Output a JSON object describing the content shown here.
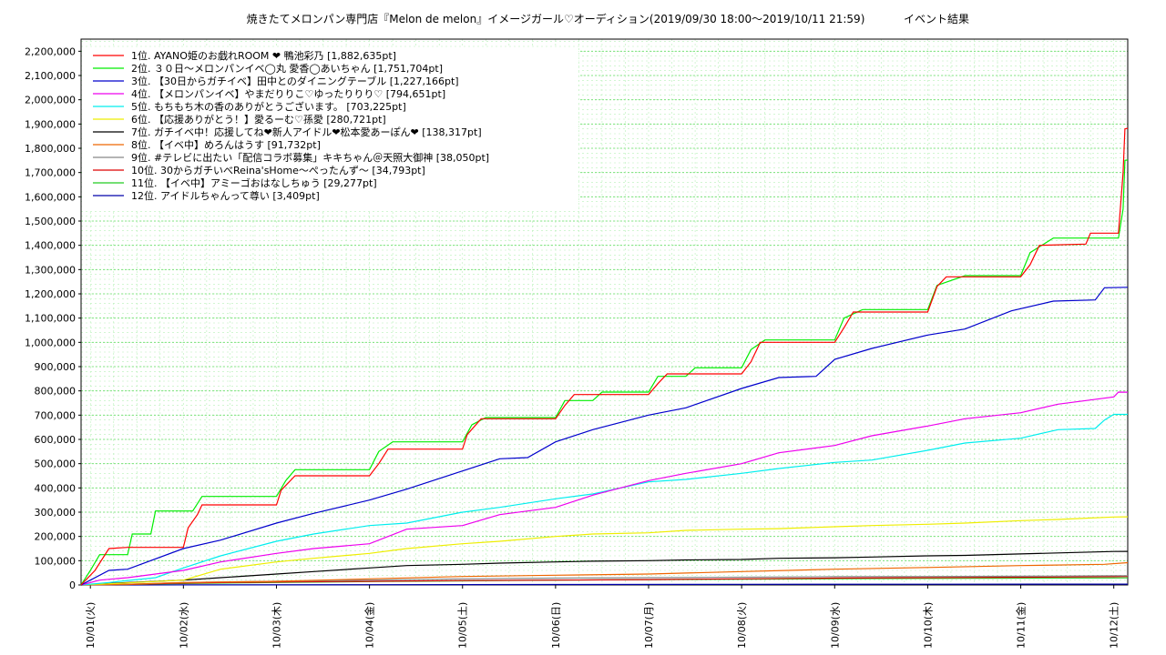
{
  "chart_data": {
    "type": "line",
    "title": "焼きたてメロンパン専門店『Melon de melon』イメージガール♡オーディション(2019/09/30 18:00〜2019/10/11 21:59)",
    "subtitle": "イベント結果",
    "xlabel": "",
    "ylabel": "",
    "ylim": [
      0,
      2250000
    ],
    "xlim": [
      0,
      11.25
    ],
    "yticks": [
      0,
      100000,
      200000,
      300000,
      400000,
      500000,
      600000,
      700000,
      800000,
      900000,
      1000000,
      1100000,
      1200000,
      1300000,
      1400000,
      1500000,
      1600000,
      1700000,
      1800000,
      1900000,
      2000000,
      2100000,
      2200000
    ],
    "ytick_labels": [
      "0",
      "100,000",
      "200,000",
      "300,000",
      "400,000",
      "500,000",
      "600,000",
      "700,000",
      "800,000",
      "900,000",
      "1,000,000",
      "1,100,000",
      "1,200,000",
      "1,300,000",
      "1,400,000",
      "1,500,000",
      "1,600,000",
      "1,700,000",
      "1,800,000",
      "1,900,000",
      "2,000,000",
      "2,100,000",
      "2,200,000"
    ],
    "xticks": [
      0.1,
      1.1,
      2.1,
      3.1,
      4.1,
      5.1,
      6.1,
      7.1,
      8.1,
      9.1,
      10.1,
      11.1
    ],
    "xtick_labels": [
      "10/01(火)",
      "10/02(水)",
      "10/03(木)",
      "10/04(金)",
      "10/05(土)",
      "10/06(日)",
      "10/07(月)",
      "10/08(火)",
      "10/09(水)",
      "10/10(木)",
      "10/11(金)",
      "10/12(土)"
    ],
    "grid": true,
    "legend_position": "top-left",
    "series": [
      {
        "name": "1位. AYANO姫のお戯れROOM ❤ 鴨池彩乃 [1,882,635pt]",
        "color": "#ff0000",
        "points": [
          [
            0,
            0
          ],
          [
            0.15,
            60000
          ],
          [
            0.3,
            150000
          ],
          [
            0.5,
            155000
          ],
          [
            1.1,
            155000
          ],
          [
            1.15,
            235000
          ],
          [
            1.25,
            290000
          ],
          [
            1.3,
            330000
          ],
          [
            2.1,
            330000
          ],
          [
            2.15,
            390000
          ],
          [
            2.3,
            450000
          ],
          [
            3.1,
            450000
          ],
          [
            3.2,
            500000
          ],
          [
            3.3,
            560000
          ],
          [
            4.1,
            560000
          ],
          [
            4.15,
            620000
          ],
          [
            4.3,
            685000
          ],
          [
            5.1,
            685000
          ],
          [
            5.2,
            740000
          ],
          [
            5.3,
            785000
          ],
          [
            6.1,
            785000
          ],
          [
            6.2,
            830000
          ],
          [
            6.3,
            870000
          ],
          [
            7.1,
            870000
          ],
          [
            7.2,
            920000
          ],
          [
            7.3,
            1000000
          ],
          [
            8.1,
            1000000
          ],
          [
            8.2,
            1060000
          ],
          [
            8.3,
            1125000
          ],
          [
            9.1,
            1125000
          ],
          [
            9.2,
            1230000
          ],
          [
            9.3,
            1270000
          ],
          [
            10.1,
            1270000
          ],
          [
            10.2,
            1320000
          ],
          [
            10.3,
            1400000
          ],
          [
            10.8,
            1405000
          ],
          [
            10.85,
            1450000
          ],
          [
            11.15,
            1450000
          ],
          [
            11.2,
            1700000
          ],
          [
            11.22,
            1880000
          ],
          [
            11.25,
            1882635
          ]
        ]
      },
      {
        "name": "2位. ３０日〜メロンパンイベ◯丸 愛香◯あいちゃん [1,751,704pt]",
        "color": "#00ee00",
        "points": [
          [
            0,
            0
          ],
          [
            0.1,
            60000
          ],
          [
            0.2,
            125000
          ],
          [
            0.5,
            125000
          ],
          [
            0.55,
            210000
          ],
          [
            0.75,
            210000
          ],
          [
            0.8,
            305000
          ],
          [
            1.2,
            305000
          ],
          [
            1.3,
            365000
          ],
          [
            2.1,
            365000
          ],
          [
            2.2,
            430000
          ],
          [
            2.3,
            475000
          ],
          [
            3.1,
            475000
          ],
          [
            3.2,
            550000
          ],
          [
            3.35,
            590000
          ],
          [
            4.1,
            590000
          ],
          [
            4.2,
            660000
          ],
          [
            4.35,
            690000
          ],
          [
            5.1,
            690000
          ],
          [
            5.2,
            760000
          ],
          [
            5.5,
            760000
          ],
          [
            5.6,
            795000
          ],
          [
            6.1,
            795000
          ],
          [
            6.2,
            860000
          ],
          [
            6.5,
            860000
          ],
          [
            6.6,
            895000
          ],
          [
            7.1,
            895000
          ],
          [
            7.2,
            970000
          ],
          [
            7.35,
            1010000
          ],
          [
            8.1,
            1010000
          ],
          [
            8.2,
            1100000
          ],
          [
            8.4,
            1135000
          ],
          [
            9.1,
            1135000
          ],
          [
            9.2,
            1235000
          ],
          [
            9.5,
            1275000
          ],
          [
            10.1,
            1275000
          ],
          [
            10.2,
            1370000
          ],
          [
            10.45,
            1430000
          ],
          [
            11.15,
            1430000
          ],
          [
            11.2,
            1550000
          ],
          [
            11.22,
            1750000
          ],
          [
            11.25,
            1751704
          ]
        ]
      },
      {
        "name": "3位. 【30日からガチイベ】田中とのダイニングテーブル [1,227,166pt]",
        "color": "#0000cc",
        "points": [
          [
            0,
            0
          ],
          [
            0.1,
            20000
          ],
          [
            0.3,
            60000
          ],
          [
            0.5,
            65000
          ],
          [
            1.1,
            150000
          ],
          [
            1.5,
            185000
          ],
          [
            2.1,
            255000
          ],
          [
            2.5,
            295000
          ],
          [
            3.1,
            350000
          ],
          [
            3.5,
            395000
          ],
          [
            4.1,
            470000
          ],
          [
            4.5,
            520000
          ],
          [
            4.8,
            525000
          ],
          [
            5.1,
            590000
          ],
          [
            5.5,
            640000
          ],
          [
            6.1,
            700000
          ],
          [
            6.5,
            730000
          ],
          [
            7.1,
            810000
          ],
          [
            7.5,
            855000
          ],
          [
            7.9,
            860000
          ],
          [
            8.1,
            930000
          ],
          [
            8.5,
            975000
          ],
          [
            9.1,
            1030000
          ],
          [
            9.5,
            1055000
          ],
          [
            10.0,
            1130000
          ],
          [
            10.45,
            1170000
          ],
          [
            10.9,
            1175000
          ],
          [
            11.0,
            1225000
          ],
          [
            11.25,
            1227166
          ]
        ]
      },
      {
        "name": "4位. 【メロンパンイベ】やまだりりこ♡ゆったりりり♡ [794,651pt]",
        "color": "#ee00ee",
        "points": [
          [
            0,
            0
          ],
          [
            0.2,
            20000
          ],
          [
            0.5,
            30000
          ],
          [
            1.1,
            60000
          ],
          [
            1.5,
            95000
          ],
          [
            2.1,
            130000
          ],
          [
            2.5,
            150000
          ],
          [
            3.1,
            170000
          ],
          [
            3.5,
            230000
          ],
          [
            4.1,
            245000
          ],
          [
            4.5,
            290000
          ],
          [
            5.1,
            320000
          ],
          [
            5.5,
            370000
          ],
          [
            6.1,
            430000
          ],
          [
            6.5,
            460000
          ],
          [
            7.1,
            500000
          ],
          [
            7.5,
            545000
          ],
          [
            8.1,
            575000
          ],
          [
            8.5,
            615000
          ],
          [
            9.1,
            655000
          ],
          [
            9.5,
            685000
          ],
          [
            10.1,
            710000
          ],
          [
            10.5,
            745000
          ],
          [
            11.1,
            775000
          ],
          [
            11.15,
            795000
          ],
          [
            11.25,
            794651
          ]
        ]
      },
      {
        "name": "5位. もちもち木の香のありがとうございます。 [703,225pt]",
        "color": "#00eeee",
        "points": [
          [
            0,
            0
          ],
          [
            0.3,
            10000
          ],
          [
            0.8,
            30000
          ],
          [
            1.1,
            70000
          ],
          [
            1.5,
            120000
          ],
          [
            2.1,
            180000
          ],
          [
            2.5,
            210000
          ],
          [
            3.1,
            245000
          ],
          [
            3.5,
            255000
          ],
          [
            4.1,
            300000
          ],
          [
            4.5,
            320000
          ],
          [
            5.1,
            355000
          ],
          [
            5.5,
            375000
          ],
          [
            6.1,
            425000
          ],
          [
            6.5,
            435000
          ],
          [
            7.1,
            460000
          ],
          [
            7.5,
            480000
          ],
          [
            8.1,
            505000
          ],
          [
            8.5,
            515000
          ],
          [
            9.1,
            555000
          ],
          [
            9.5,
            585000
          ],
          [
            10.1,
            605000
          ],
          [
            10.5,
            640000
          ],
          [
            10.9,
            645000
          ],
          [
            11.0,
            680000
          ],
          [
            11.1,
            703000
          ],
          [
            11.25,
            703225
          ]
        ]
      },
      {
        "name": "6位. 【応援ありがとう！】愛るーむ♡孫愛 [280,721pt]",
        "color": "#eeee00",
        "points": [
          [
            0,
            0
          ],
          [
            0.3,
            5000
          ],
          [
            1.1,
            20000
          ],
          [
            1.5,
            65000
          ],
          [
            2.1,
            95000
          ],
          [
            2.5,
            110000
          ],
          [
            3.1,
            130000
          ],
          [
            3.5,
            150000
          ],
          [
            4.1,
            170000
          ],
          [
            4.5,
            180000
          ],
          [
            5.1,
            200000
          ],
          [
            5.5,
            210000
          ],
          [
            6.1,
            215000
          ],
          [
            6.5,
            225000
          ],
          [
            7.1,
            230000
          ],
          [
            7.5,
            232000
          ],
          [
            8.1,
            240000
          ],
          [
            8.5,
            245000
          ],
          [
            9.1,
            250000
          ],
          [
            9.5,
            255000
          ],
          [
            10.1,
            265000
          ],
          [
            10.5,
            270000
          ],
          [
            11.1,
            280000
          ],
          [
            11.25,
            280721
          ]
        ]
      },
      {
        "name": "7位. ガチイベ中！応援してね❤新人アイドル❤松本愛あーぽん❤ [138,317pt]",
        "color": "#000000",
        "points": [
          [
            0,
            0
          ],
          [
            0.5,
            10000
          ],
          [
            1.1,
            20000
          ],
          [
            1.5,
            30000
          ],
          [
            2.1,
            45000
          ],
          [
            2.5,
            55000
          ],
          [
            3.1,
            70000
          ],
          [
            3.5,
            80000
          ],
          [
            4.1,
            85000
          ],
          [
            4.5,
            90000
          ],
          [
            5.1,
            95000
          ],
          [
            5.5,
            98000
          ],
          [
            6.1,
            100000
          ],
          [
            6.5,
            103000
          ],
          [
            7.1,
            105000
          ],
          [
            7.5,
            110000
          ],
          [
            8.1,
            112000
          ],
          [
            8.5,
            115000
          ],
          [
            9.1,
            120000
          ],
          [
            9.5,
            122000
          ],
          [
            10.1,
            128000
          ],
          [
            10.5,
            132000
          ],
          [
            11.1,
            138000
          ],
          [
            11.25,
            138317
          ]
        ]
      },
      {
        "name": "8位. 【イベ中】めろんはうす [91,732pt]",
        "color": "#ee6600",
        "points": [
          [
            0,
            0
          ],
          [
            0.5,
            3000
          ],
          [
            1.1,
            10000
          ],
          [
            2.1,
            15000
          ],
          [
            3.1,
            25000
          ],
          [
            4.1,
            35000
          ],
          [
            5.1,
            40000
          ],
          [
            6.1,
            45000
          ],
          [
            7.1,
            55000
          ],
          [
            8.1,
            65000
          ],
          [
            9.1,
            72000
          ],
          [
            10.1,
            80000
          ],
          [
            11.0,
            85000
          ],
          [
            11.25,
            91732
          ]
        ]
      },
      {
        "name": "9位. #テレビに出たい「配信コラボ募集」キキちゃん＠天照大御神 [38,050pt]",
        "color": "#888888",
        "points": [
          [
            0,
            0
          ],
          [
            0.5,
            3000
          ],
          [
            1.1,
            10000
          ],
          [
            2.1,
            15000
          ],
          [
            3.1,
            20000
          ],
          [
            4.1,
            25000
          ],
          [
            5.1,
            28000
          ],
          [
            6.1,
            30000
          ],
          [
            7.1,
            32000
          ],
          [
            8.1,
            34000
          ],
          [
            9.1,
            35000
          ],
          [
            10.1,
            36000
          ],
          [
            11.1,
            38000
          ],
          [
            11.25,
            38050
          ]
        ]
      },
      {
        "name": "10位. 30からガチいべReina'sHome〜ぺったんず〜 [34,793pt]",
        "color": "#dd0000",
        "points": [
          [
            0,
            0
          ],
          [
            0.5,
            2000
          ],
          [
            1.1,
            8000
          ],
          [
            2.1,
            12000
          ],
          [
            3.1,
            15000
          ],
          [
            4.1,
            18000
          ],
          [
            5.1,
            20000
          ],
          [
            6.1,
            22000
          ],
          [
            7.1,
            25000
          ],
          [
            8.1,
            28000
          ],
          [
            9.1,
            30000
          ],
          [
            10.1,
            32000
          ],
          [
            11.1,
            34000
          ],
          [
            11.25,
            34793
          ]
        ]
      },
      {
        "name": "11位. 【イベ中】アミーゴおはなしちゅう [29,277pt]",
        "color": "#22cc22",
        "points": [
          [
            0,
            0
          ],
          [
            0.5,
            2000
          ],
          [
            1.1,
            6000
          ],
          [
            2.1,
            10000
          ],
          [
            3.1,
            14000
          ],
          [
            4.1,
            17000
          ],
          [
            5.1,
            20000
          ],
          [
            6.1,
            22000
          ],
          [
            7.1,
            24000
          ],
          [
            8.1,
            26000
          ],
          [
            9.1,
            27000
          ],
          [
            10.1,
            28000
          ],
          [
            11.1,
            29000
          ],
          [
            11.25,
            29277
          ]
        ]
      },
      {
        "name": "12位. アイドルちゃんって尊い [3,409pt]",
        "color": "#0000aa",
        "points": [
          [
            0,
            0
          ],
          [
            1.1,
            500
          ],
          [
            3.1,
            1000
          ],
          [
            5.1,
            2000
          ],
          [
            7.1,
            2500
          ],
          [
            9.1,
            3000
          ],
          [
            11.1,
            3400
          ],
          [
            11.25,
            3409
          ]
        ]
      }
    ]
  }
}
